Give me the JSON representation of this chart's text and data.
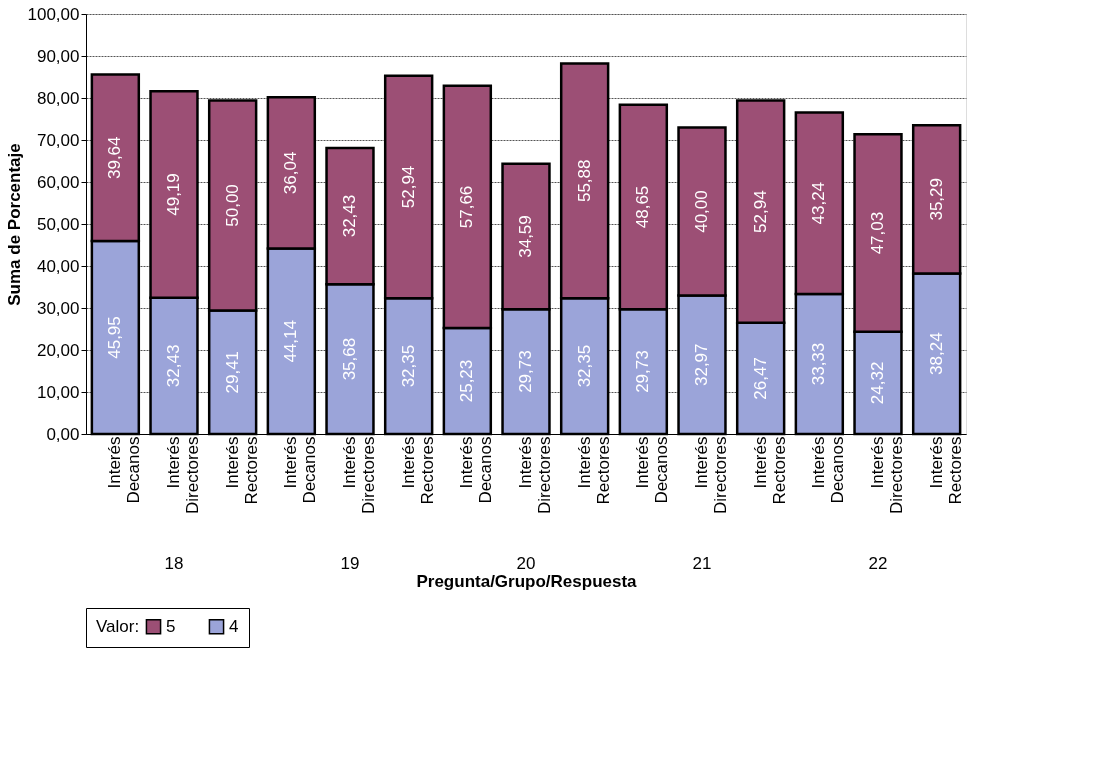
{
  "chart_data": {
    "type": "bar",
    "stacked": true,
    "xlabel": "Pregunta/Grupo/Respuesta",
    "ylabel": "Suma de Porcentaje",
    "legend_title": "Valor:",
    "legend": "bottom",
    "grid": "y",
    "categories": [
      "Interés Decanos",
      "Interés Directores",
      "Interés Rectores",
      "Interés Decanos",
      "Interés Directores",
      "Interés Rectores",
      "Interés Decanos",
      "Interés Directores",
      "Interés Rectores",
      "Interés Decanos",
      "Interés Directores",
      "Interés Rectores",
      "Interés Decanos",
      "Interés Directores",
      "Interés Rectores"
    ],
    "annotations": [
      "18",
      "19",
      "20",
      "21",
      "22"
    ],
    "ylim": [
      0,
      100
    ],
    "yticks": [
      {
        "value": 0,
        "label": "0,00"
      },
      {
        "value": 10,
        "label": "10,00"
      },
      {
        "value": 20,
        "label": "20,00"
      },
      {
        "value": 30,
        "label": "30,00"
      },
      {
        "value": 40,
        "label": "40,00"
      },
      {
        "value": 50,
        "label": "50,00"
      },
      {
        "value": 60,
        "label": "60,00"
      },
      {
        "value": 70,
        "label": "70,00"
      },
      {
        "value": 80,
        "label": "80,00"
      },
      {
        "value": 90,
        "label": "90,00"
      },
      {
        "value": 100,
        "label": "100,00"
      }
    ],
    "series": [
      {
        "name": "4",
        "color": "#9ba4d9",
        "values": [
          45.95,
          32.43,
          29.41,
          44.14,
          35.68,
          32.35,
          25.23,
          29.73,
          32.35,
          29.73,
          32.97,
          26.47,
          33.33,
          24.32,
          38.24
        ],
        "value_labels": [
          "45,95",
          "32,43",
          "29,41",
          "44,14",
          "35,68",
          "32,35",
          "25,23",
          "29,73",
          "32,35",
          "29,73",
          "32,97",
          "26,47",
          "33,33",
          "24,32",
          "38,24"
        ]
      },
      {
        "name": "5",
        "color": "#9c4f75",
        "values": [
          39.64,
          49.19,
          50.0,
          36.04,
          32.43,
          52.94,
          57.66,
          34.59,
          55.88,
          48.65,
          40.0,
          52.94,
          43.24,
          47.03,
          35.29
        ],
        "value_labels": [
          "39,64",
          "49,19",
          "50,00",
          "36,04",
          "32,43",
          "52,94",
          "57,66",
          "34,59",
          "55,88",
          "48,65",
          "40,00",
          "52,94",
          "43,24",
          "47,03",
          "35,29"
        ]
      }
    ]
  }
}
